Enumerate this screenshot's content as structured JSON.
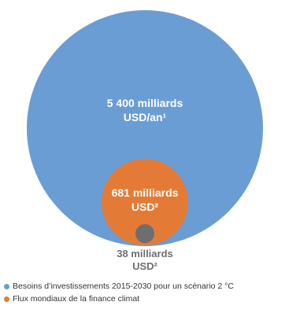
{
  "chart_data": {
    "type": "bubble",
    "bubbles": [
      {
        "name": "needs",
        "label_line1": "5 400 milliards",
        "label_line2": "USD/an¹",
        "value": 5400,
        "color": "#6a9dd4"
      },
      {
        "name": "climate-finance",
        "label_line1": "681 milliards",
        "label_line2": "USD²",
        "value": 681,
        "color": "#e37b36"
      },
      {
        "name": "small-flow",
        "label_line1": "38 milliards",
        "label_line2": "USD²",
        "value": 38,
        "color": "#6d6e71"
      }
    ],
    "legend": [
      {
        "label": "Besoins d’investissements 2015-2030 pour un scénario 2 °C",
        "color": "#6a9dd4"
      },
      {
        "label": "Flux mondiaux de la finance climat",
        "color": "#e37b36"
      }
    ]
  }
}
